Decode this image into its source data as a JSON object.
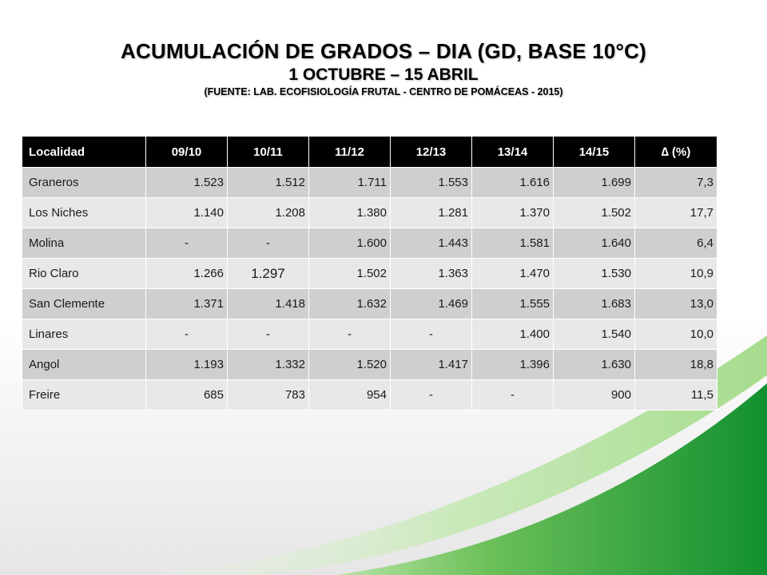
{
  "title": {
    "main": "ACUMULACIÓN DE GRADOS – DIA (GD, BASE 10°C)",
    "sub": "1 OCTUBRE – 15 ABRIL",
    "source": "(FUENTE: LAB. ECOFISIOLOGÍA FRUTAL - CENTRO DE POMÁCEAS - 2015)"
  },
  "colors": {
    "header_bg": "#000000",
    "row_dark": "#cfcfcf",
    "row_light": "#e8e8e8",
    "swoosh_green": "#1f9a3a",
    "swoosh_light_green": "#8fd07a"
  },
  "table": {
    "headers": [
      "Localidad",
      "09/10",
      "10/11",
      "11/12",
      "12/13",
      "13/14",
      "14/15",
      "∆ (%)"
    ],
    "rows": [
      [
        "Graneros",
        "1.523",
        "1.512",
        "1.711",
        "1.553",
        "1.616",
        "1.699",
        "7,3"
      ],
      [
        "Los Niches",
        "1.140",
        "1.208",
        "1.380",
        "1.281",
        "1.370",
        "1.502",
        "17,7"
      ],
      [
        "Molina",
        "-",
        "-",
        "1.600",
        "1.443",
        "1.581",
        "1.640",
        "6,4"
      ],
      [
        "Rio Claro",
        "1.266",
        "1.297",
        "1.502",
        "1.363",
        "1.470",
        "1.530",
        "10,9"
      ],
      [
        "San Clemente",
        "1.371",
        "1.418",
        "1.632",
        "1.469",
        "1.555",
        "1.683",
        "13,0"
      ],
      [
        "Linares",
        "-",
        "-",
        "-",
        "-",
        "1.400",
        "1.540",
        "10,0"
      ],
      [
        "Angol",
        "1.193",
        "1.332",
        "1.520",
        "1.417",
        "1.396",
        "1.630",
        "18,8"
      ],
      [
        "Freire",
        "685",
        "783",
        "954",
        "-",
        "-",
        "900",
        "11,5"
      ]
    ]
  }
}
